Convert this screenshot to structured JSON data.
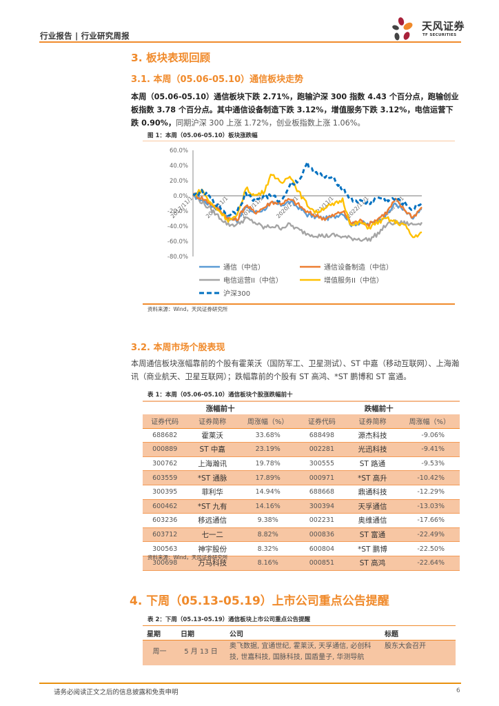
{
  "header": {
    "report_type": "行业报告 | 行业研究周报",
    "logo_cn": "天风证券",
    "logo_en": "TF SECURITIES"
  },
  "section3": {
    "title": "3. 板块表现回顾",
    "sub1": {
      "title": "3.1. 本周（05.06-05.10）通信板块走势",
      "paragraph_bold": "本周（05.06-05.10）通信板块下跌 2.71%，跑输沪深 300 指数 4.43 个百分点，跑输创业板指数 3.78 个百分点。其中通信设备制造下跌 3.12%，增值服务下跌 3.12%，电信运营下跌 0.90%，",
      "paragraph_light": "同期沪深 300 上涨 1.72%，创业板指数上涨 1.06%。",
      "figure_title": "图 1：本周（05.06-05.10）板块涨跌幅",
      "figure_source": "资料来源：Wind，天风证券研究所"
    },
    "sub2": {
      "title": "3.2. 本周市场个股表现",
      "paragraph": "本周通信板块涨幅靠前的个股有霍莱沃（国防军工、卫星测试）、ST 中嘉（移动互联网）、上海瀚讯（商业航天、卫星互联网）；跌幅靠前的个股有 ST 高鸿、*ST 鹏博和 ST 富通。",
      "table_title": "表 1：本周（05.06-05.10）通信板块个股涨跌幅前十",
      "table_source": "资料来源：Wind，天风证券研究所",
      "group_headers": [
        "涨幅前十",
        "跌幅前十"
      ],
      "columns": [
        "证券代码",
        "证券简称",
        "周涨幅（%）",
        "证券代码",
        "证券简称",
        "周涨幅（%）"
      ],
      "rows": [
        [
          "688682",
          "霍莱沃",
          "33.68%",
          "688498",
          "源杰科技",
          "-9.06%"
        ],
        [
          "000889",
          "ST 中嘉",
          "23.19%",
          "002281",
          "光迅科技",
          "-9.41%"
        ],
        [
          "300762",
          "上海瀚讯",
          "19.78%",
          "300555",
          "ST 路通",
          "-9.53%"
        ],
        [
          "603559",
          "*ST 通脉",
          "17.89%",
          "000971",
          "*ST 高升",
          "-10.42%"
        ],
        [
          "300395",
          "菲利华",
          "14.94%",
          "688668",
          "鼎通科技",
          "-12.29%"
        ],
        [
          "600462",
          "*ST 九有",
          "14.16%",
          "300394",
          "天孚通信",
          "-13.03%"
        ],
        [
          "603236",
          "移远通信",
          "9.38%",
          "002231",
          "奥维通信",
          "-17.66%"
        ],
        [
          "603712",
          "七一二",
          "8.82%",
          "000836",
          "ST 富通",
          "-22.49%"
        ],
        [
          "300563",
          "神宇股份",
          "8.32%",
          "600804",
          "*ST 鹏博",
          "-22.50%"
        ],
        [
          "300698",
          "万马科技",
          "8.16%",
          "000851",
          "ST 高鸿",
          "-22.64%"
        ]
      ]
    }
  },
  "section4": {
    "title": "4. 下周（05.13-05.19）上市公司重点公告提醒",
    "table_title": "表 2：下周（05.13-05.19）通信板块上市公司重点公告提醒",
    "columns": [
      "星期",
      "日期",
      "公司",
      "标题"
    ],
    "rows": [
      [
        "周一",
        "5 月 13 日",
        "奥飞数据, 宜通世纪, 霍莱沃, 天孚通信, 必创科技, 世嘉科技, 国脉科技, 国盾量子, 华测导航",
        "股东大会召开"
      ]
    ]
  },
  "footer": {
    "disclaimer": "请务必阅读正文之后的信息披露和免责申明",
    "page_number": "6"
  },
  "chart_data": {
    "type": "line",
    "title": "图 1：本周（05.06-05.10）板块涨跌幅",
    "xlabel": "",
    "ylabel": "",
    "ylim": [
      -80,
      60
    ],
    "yticks": [
      "60.0%",
      "40.0%",
      "20.0%",
      "0.0%",
      "-20.0%",
      "-40.0%",
      "-60.0%",
      "-80.0%"
    ],
    "x_tick_labels": [
      "2017/11/1",
      "2018/11/1",
      "2019/11/1",
      "2020/11/1",
      "2021/11/1",
      "2022/11/1",
      "2023/11/1"
    ],
    "x": [
      "2017/11",
      "2018/02",
      "2018/05",
      "2018/08",
      "2018/11",
      "2019/02",
      "2019/05",
      "2019/08",
      "2019/11",
      "2020/02",
      "2020/05",
      "2020/08",
      "2020/11",
      "2021/02",
      "2021/05",
      "2021/08",
      "2021/11",
      "2022/02",
      "2022/05",
      "2022/08",
      "2022/11",
      "2023/02",
      "2023/05",
      "2023/08",
      "2023/11",
      "2024/02",
      "2024/05"
    ],
    "series": [
      {
        "name": "通信（中信）",
        "color": "#5b9bd5",
        "style": "solid",
        "values": [
          0,
          -5,
          -12,
          -18,
          -30,
          -32,
          -15,
          -22,
          -18,
          -10,
          -12,
          -8,
          -15,
          -25,
          -28,
          -30,
          -28,
          -22,
          -38,
          -35,
          -38,
          -32,
          -25,
          -10,
          -20,
          -30,
          -18
        ]
      },
      {
        "name": "通信设备制造（中信）",
        "color": "#ed7d31",
        "style": "solid",
        "values": [
          2,
          -3,
          -10,
          -18,
          -30,
          -32,
          -12,
          -22,
          -16,
          -8,
          -10,
          -5,
          -12,
          -22,
          -26,
          -30,
          -26,
          -20,
          -36,
          -33,
          -38,
          -30,
          -22,
          -5,
          -18,
          -28,
          -15
        ]
      },
      {
        "name": "电信运营II（中信）",
        "color": "#a5a5a5",
        "style": "solid",
        "values": [
          0,
          -8,
          -18,
          -28,
          -38,
          -38,
          -30,
          -35,
          -42,
          -40,
          -42,
          -38,
          -45,
          -50,
          -52,
          -53,
          -52,
          -54,
          -56,
          -57,
          -58,
          -50,
          -38,
          -35,
          -36,
          -38,
          -35
        ]
      },
      {
        "name": "增值服务II（中信）",
        "color": "#ffc000",
        "style": "solid",
        "values": [
          0,
          8,
          -10,
          -20,
          -32,
          -28,
          10,
          0,
          5,
          30,
          15,
          28,
          5,
          -12,
          -22,
          -15,
          -12,
          -5,
          -40,
          -35,
          -42,
          -35,
          -30,
          -35,
          -38,
          -55,
          -48
        ]
      },
      {
        "name": "沪深300",
        "color": "#0070c0",
        "style": "dashed",
        "values": [
          0,
          5,
          -3,
          -15,
          -25,
          -20,
          2,
          -5,
          -2,
          0,
          -8,
          15,
          20,
          42,
          30,
          25,
          22,
          10,
          -5,
          -8,
          -10,
          -2,
          -5,
          -5,
          -10,
          -18,
          -8
        ]
      }
    ],
    "legend_position": "bottom",
    "grid": false
  }
}
